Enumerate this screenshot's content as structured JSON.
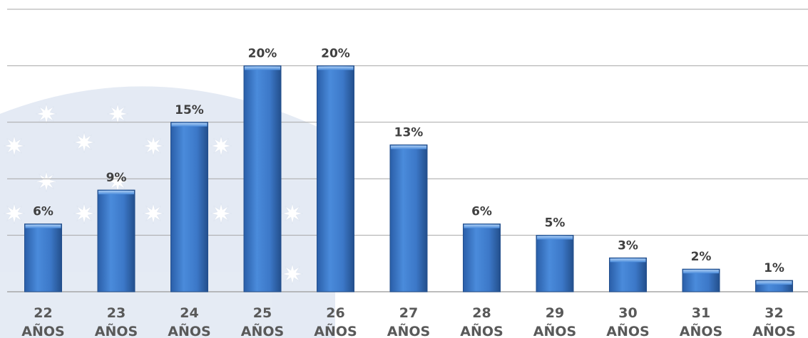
{
  "chart_data": {
    "type": "bar",
    "categories": [
      "22 AÑOS",
      "23 AÑOS",
      "24 AÑOS",
      "25 AÑOS",
      "26 AÑOS",
      "27 AÑOS",
      "28 AÑOS",
      "29 AÑOS",
      "30 AÑOS",
      "31 AÑOS",
      "32 AÑOS"
    ],
    "category_lines": [
      [
        "22",
        "AÑOS"
      ],
      [
        "23",
        "AÑOS"
      ],
      [
        "24",
        "AÑOS"
      ],
      [
        "25",
        "AÑOS"
      ],
      [
        "26",
        "AÑOS"
      ],
      [
        "27",
        "AÑOS"
      ],
      [
        "28",
        "AÑOS"
      ],
      [
        "29",
        "AÑOS"
      ],
      [
        "30",
        "AÑOS"
      ],
      [
        "31",
        "AÑOS"
      ],
      [
        "32",
        "AÑOS"
      ]
    ],
    "values": [
      6,
      9,
      15,
      20,
      20,
      13,
      6,
      5,
      3,
      2,
      1
    ],
    "value_labels": [
      "6%",
      "9%",
      "15%",
      "20%",
      "20%",
      "13%",
      "6%",
      "5%",
      "3%",
      "2%",
      "1%"
    ],
    "ylim": [
      0,
      25
    ],
    "grid": true,
    "legend": "none",
    "colors": {
      "bar": "#3F7CCB",
      "bar_dark": "#234F8C",
      "grid": "#A6A6A6",
      "label": "#404040",
      "tick": "#595959"
    }
  }
}
